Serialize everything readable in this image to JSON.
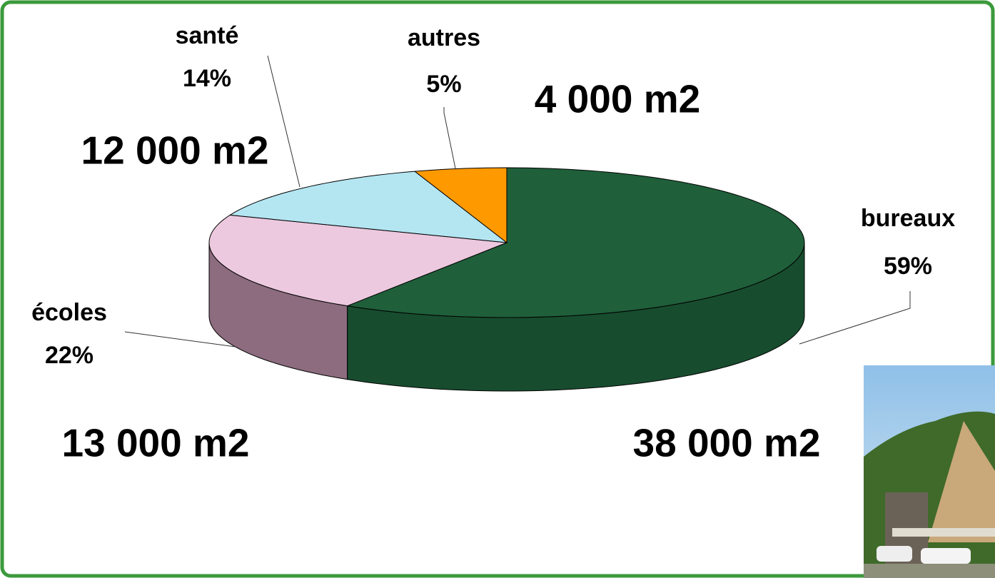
{
  "chart_data": {
    "type": "pie3d",
    "categories": [
      "bureaux",
      "écoles",
      "santé",
      "autres"
    ],
    "values": [
      59,
      22,
      14,
      5
    ],
    "value_labels": [
      "59%",
      "22%",
      "14%",
      "5%"
    ],
    "area_labels": [
      "38 000 m2",
      "13 000 m2",
      "12 000 m2",
      "4 000 m2"
    ],
    "colors": [
      "#1f5f3a",
      "#ecc9df",
      "#b4e6f2",
      "#ff9900"
    ],
    "side_colors": [
      "#174d2e",
      "#8c6c7e",
      "#7fb8c4",
      "#c47500"
    ]
  }
}
